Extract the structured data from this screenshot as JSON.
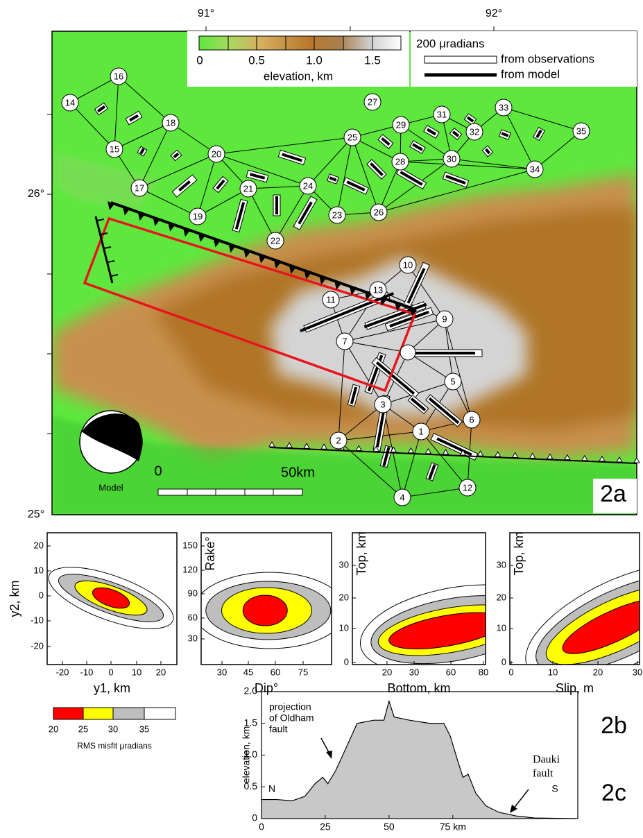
{
  "map": {
    "lon_labels": [
      "91°",
      "92°"
    ],
    "lat_labels": [
      "26°",
      "25°"
    ],
    "colorbar": {
      "ticks": [
        "0",
        "0.5",
        "1.0",
        "1.5"
      ],
      "label": "elevation, km"
    },
    "legend": {
      "scale": "200 μradians",
      "observed": "from observations",
      "model": "from model"
    },
    "stations": [
      "1",
      "2",
      "3",
      "4",
      "5",
      "6",
      "7",
      "9",
      "10",
      "11",
      "12",
      "13",
      "14",
      "15",
      "16",
      "17",
      "18",
      "19",
      "20",
      "21",
      "22",
      "23",
      "24",
      "25",
      "26",
      "27",
      "28",
      "29",
      "30",
      "31",
      "32",
      "33",
      "34",
      "35"
    ],
    "focal_mechanism": "Model",
    "scale_bar": {
      "start": "0",
      "end": "50km"
    },
    "panel_label": "2a"
  },
  "misfit_panels": {
    "plots": [
      {
        "xlabel": "y1, km",
        "ylabel": "y2, km",
        "xticks": [
          -20,
          -10,
          0,
          10,
          20
        ],
        "yticks": [
          20,
          10,
          0,
          -10,
          -20
        ]
      },
      {
        "xlabel": "Dip°",
        "ylabel": "Rake°",
        "xticks": [
          30,
          45,
          60,
          75
        ],
        "yticks": [
          150,
          120,
          90,
          60,
          30
        ]
      },
      {
        "xlabel": "Bottom, km",
        "ylabel": "Top, km",
        "xticks": [
          20,
          30,
          60,
          80
        ],
        "yticks": [
          30,
          20,
          10,
          0
        ]
      },
      {
        "xlabel": "Slip, m",
        "ylabel": "Top, km",
        "xticks": [
          0,
          10,
          20,
          30
        ],
        "yticks": [
          30,
          20,
          10,
          0
        ]
      }
    ],
    "legend": {
      "ticks": [
        20,
        25,
        30,
        35
      ],
      "label": "RMS misfit μradians"
    },
    "panel_label": "2b"
  },
  "chart_data": {
    "type": "area",
    "ylabel": "elevation, km",
    "x": [
      0,
      6,
      12,
      17,
      21,
      24,
      26,
      29,
      33,
      37.5,
      44,
      48,
      50,
      52,
      58,
      66,
      71.5,
      74,
      77,
      79,
      81,
      84,
      88,
      93,
      100,
      107,
      123
    ],
    "values": [
      0.3,
      0.3,
      0.28,
      0.35,
      0.55,
      0.65,
      0.55,
      0.75,
      1.1,
      1.5,
      1.55,
      1.55,
      1.85,
      1.6,
      1.55,
      1.5,
      1.5,
      1.3,
      0.9,
      0.65,
      0.7,
      0.4,
      0.2,
      0.1,
      0.04,
      0.01,
      0
    ],
    "color": "#c8c8c8",
    "xlim": [
      0,
      124
    ],
    "ylim": [
      0,
      2.0
    ],
    "xticks": [
      0,
      25,
      50,
      {
        "value": 75,
        "label": "75 km"
      }
    ],
    "yticks": [
      0,
      0.5,
      {
        "value": 1.0,
        "label": "1.0"
      },
      1.5,
      {
        "value": 2.0,
        "label": "2.0"
      }
    ],
    "annotations": [
      "projection",
      "of Oldham",
      "fault",
      "Dauki",
      "fault",
      "N",
      "S"
    ],
    "panel_label": "2c"
  }
}
